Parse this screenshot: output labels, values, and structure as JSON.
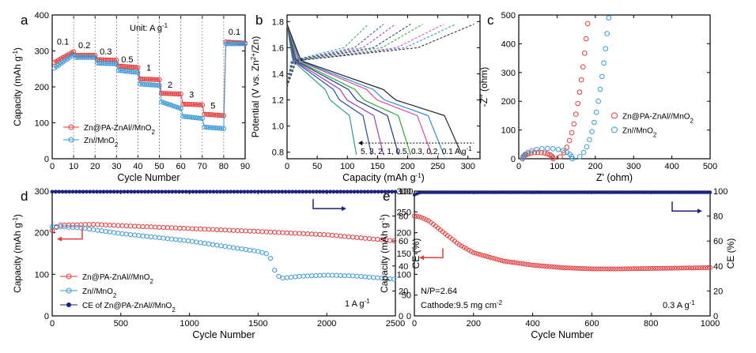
{
  "chart_data": [
    {
      "id": "a",
      "panel_label": "a",
      "type": "scatter",
      "xlabel": "Cycle Number",
      "ylabel": "Capacity (mAh g",
      "ylabel_sup": "-1",
      "ylabel_end": ")",
      "xlim": [
        0,
        90
      ],
      "ylim": [
        0,
        400
      ],
      "xticks": [
        0,
        10,
        20,
        30,
        40,
        50,
        60,
        70,
        80,
        90
      ],
      "yticks": [
        0,
        100,
        200,
        300,
        400
      ],
      "unit_note": "Unit: A g",
      "unit_sup": "-1",
      "rate_labels": [
        {
          "text": "0.1",
          "x": 5,
          "y": 318
        },
        {
          "text": "0.2",
          "x": 15,
          "y": 308
        },
        {
          "text": "0.3",
          "x": 25,
          "y": 290
        },
        {
          "text": "0.5",
          "x": 35,
          "y": 268
        },
        {
          "text": "1",
          "x": 45,
          "y": 245
        },
        {
          "text": "2",
          "x": 55,
          "y": 198
        },
        {
          "text": "3",
          "x": 65,
          "y": 170
        },
        {
          "text": "5",
          "x": 75,
          "y": 140
        },
        {
          "text": "0.1",
          "x": 85,
          "y": 345
        }
      ],
      "vlines": [
        10,
        20,
        30,
        40,
        50,
        60,
        70,
        80
      ],
      "series": [
        {
          "name": "Zn@PA-ZnAl//MnO",
          "name_sub": "2",
          "color": "#e83a3a",
          "segments": [
            [
              1,
              10,
              268,
              298
            ],
            [
              11,
              20,
              288,
              288
            ],
            [
              21,
              30,
              276,
              274
            ],
            [
              31,
              40,
              258,
              254
            ],
            [
              41,
              50,
              222,
              220
            ],
            [
              51,
              60,
              182,
              180
            ],
            [
              61,
              70,
              152,
              150
            ],
            [
              71,
              80,
              124,
              120
            ],
            [
              81,
              90,
              325,
              322
            ]
          ]
        },
        {
          "name": "Zn//MnO",
          "name_sub": "2",
          "color": "#3a9ad8",
          "segments": [
            [
              1,
              10,
              252,
              290
            ],
            [
              11,
              20,
              282,
              282
            ],
            [
              21,
              30,
              266,
              264
            ],
            [
              31,
              40,
              246,
              240
            ],
            [
              41,
              50,
              208,
              204
            ],
            [
              51,
              60,
              158,
              140
            ],
            [
              61,
              70,
              118,
              112
            ],
            [
              71,
              80,
              88,
              84
            ],
            [
              81,
              90,
              320,
              320
            ]
          ]
        }
      ]
    },
    {
      "id": "b",
      "panel_label": "b",
      "type": "line",
      "xlabel": "Capacity (mAh g",
      "xlabel_sup": "-1",
      "xlabel_end": ")",
      "ylabel": "Potential (V vs. Zn",
      "ylabel_sup": "2+",
      "ylabel_end": "/Zn)",
      "xlim": [
        0,
        320
      ],
      "ylim": [
        0.75,
        1.85
      ],
      "xticks": [
        0,
        50,
        100,
        150,
        200,
        250,
        300
      ],
      "yticks": [
        0.8,
        1.0,
        1.2,
        1.4,
        1.6,
        1.8
      ],
      "rate_annotation": "5, 3, 2, 1, 0.5, 0.3, 0.2, 0.1 A g",
      "rate_annotation_sup": "-1",
      "curves": [
        {
          "rate": "5",
          "color": "#2a9d8f",
          "cap": 115
        },
        {
          "rate": "3",
          "color": "#264e9c",
          "cap": 140
        },
        {
          "rate": "2",
          "color": "#a13fb0",
          "cap": 160
        },
        {
          "rate": "1",
          "color": "#1a3a8a",
          "cap": 185
        },
        {
          "rate": "0.5",
          "color": "#2ea836",
          "cap": 205
        },
        {
          "rate": "0.3",
          "color": "#e0499b",
          "cap": 240
        },
        {
          "rate": "0.2",
          "color": "#2b8fd6",
          "cap": 260
        },
        {
          "rate": "0.1",
          "color": "#222222",
          "cap": 290
        }
      ]
    },
    {
      "id": "c",
      "panel_label": "c",
      "type": "scatter",
      "xlabel": "Z' (ohm)",
      "ylabel": "-Z'' (ohm)",
      "xlim": [
        0,
        500
      ],
      "ylim": [
        0,
        500
      ],
      "xticks": [
        0,
        100,
        200,
        300,
        400,
        500
      ],
      "yticks": [
        0,
        100,
        200,
        300,
        400,
        500
      ],
      "series": [
        {
          "name": "Zn@PA-ZnAl//MnO",
          "name_sub": "2",
          "color": "#e83a3a",
          "semicircle": [
            10,
            90
          ],
          "tail_to": [
            180,
            470
          ]
        },
        {
          "name": "Zn//MnO",
          "name_sub": "2",
          "color": "#3a9ad8",
          "semicircle": [
            10,
            140
          ],
          "tail_to": [
            235,
            490
          ]
        }
      ]
    },
    {
      "id": "d",
      "panel_label": "d",
      "type": "scatter",
      "xlabel": "Cycle Number",
      "ylabel": "Capacity (mAh g",
      "ylabel_sup": "-1",
      "ylabel_end": ")",
      "y2label": "CE (%)",
      "xlim": [
        0,
        2500
      ],
      "ylim": [
        0,
        300
      ],
      "y2lim": [
        0,
        100
      ],
      "xticks": [
        0,
        500,
        1000,
        1500,
        2000,
        2500
      ],
      "yticks": [
        0,
        100,
        200,
        300
      ],
      "y2ticks": [
        0,
        20,
        40,
        60,
        80,
        100
      ],
      "rate_note": "1 A g",
      "rate_note_sup": "-1",
      "series": [
        {
          "name": "Zn@PA-ZnAl//MnO",
          "name_sub": "2",
          "color": "#e83a3a",
          "axis": "left",
          "points": [
            [
              0,
              205
            ],
            [
              50,
              218
            ],
            [
              300,
              220
            ],
            [
              500,
              217
            ],
            [
              1000,
              210
            ],
            [
              1500,
              203
            ],
            [
              2000,
              195
            ],
            [
              2500,
              180
            ]
          ]
        },
        {
          "name": "Zn//MnO",
          "name_sub": "2",
          "color": "#3a9ad8",
          "axis": "left",
          "points": [
            [
              0,
              215
            ],
            [
              200,
              212
            ],
            [
              500,
              198
            ],
            [
              1000,
              180
            ],
            [
              1500,
              155
            ],
            [
              1580,
              148
            ],
            [
              1620,
              110
            ],
            [
              1660,
              90
            ],
            [
              1800,
              95
            ],
            [
              2000,
              98
            ],
            [
              2200,
              96
            ],
            [
              2500,
              88
            ]
          ]
        },
        {
          "name": "CE of Zn@PA-ZnAl//MnO",
          "name_sub": "2",
          "color": "#1a237e",
          "axis": "right",
          "points": [
            [
              0,
              99.5
            ],
            [
              2500,
              99.5
            ]
          ]
        }
      ]
    },
    {
      "id": "e",
      "panel_label": "e",
      "type": "scatter",
      "xlabel": "Cycle Number",
      "ylabel": "Capacity (mAh g",
      "ylabel_sup": "-1",
      "ylabel_end": ")",
      "y2label": "CE (%)",
      "xlim": [
        0,
        1000
      ],
      "ylim": [
        0,
        300
      ],
      "y2lim": [
        0,
        100
      ],
      "xticks": [
        0,
        200,
        400,
        600,
        800,
        1000
      ],
      "yticks": [
        0,
        50,
        100,
        150,
        200,
        250,
        300
      ],
      "y2ticks": [
        0,
        20,
        40,
        60,
        80,
        100
      ],
      "notes": [
        "N/P=2.64"
      ],
      "cathode_note": "Cathode:9.5 mg cm",
      "cathode_sup": "-2",
      "rate_note": "0.3 A g",
      "rate_note_sup": "-1",
      "series": [
        {
          "name": "capacity",
          "color": "#e83a3a",
          "axis": "left",
          "points": [
            [
              0,
              240
            ],
            [
              20,
              238
            ],
            [
              50,
              228
            ],
            [
              100,
              200
            ],
            [
              150,
              172
            ],
            [
              200,
              152
            ],
            [
              300,
              132
            ],
            [
              400,
              122
            ],
            [
              500,
              116
            ],
            [
              600,
              113
            ],
            [
              700,
              113
            ],
            [
              800,
              114
            ],
            [
              900,
              115
            ],
            [
              1000,
              116
            ]
          ]
        },
        {
          "name": "CE",
          "color": "#1a237e",
          "axis": "right",
          "points": [
            [
              0,
              97
            ],
            [
              20,
              99
            ],
            [
              1000,
              99
            ]
          ]
        }
      ]
    }
  ]
}
